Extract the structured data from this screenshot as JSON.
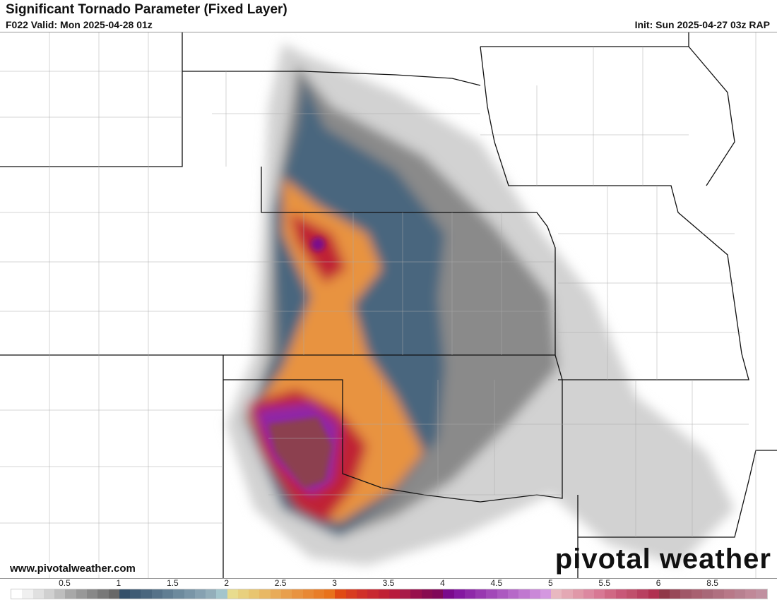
{
  "header": {
    "title": "Significant Tornado Parameter (Fixed Layer)",
    "valid": "F022 Valid: Mon 2025-04-28 01z",
    "init": "Init: Sun 2025-04-27 03z RAP"
  },
  "footer": {
    "website": "www.pivotalweather.com",
    "logo": "pivotal weather"
  },
  "colorbar": {
    "labels": [
      "0.5",
      "1",
      "1.5",
      "2",
      "2.5",
      "3",
      "3.5",
      "4",
      "4.5",
      "5",
      "5.5",
      "6",
      "8.5"
    ],
    "colors": [
      "#ffffff",
      "#f0f0f0",
      "#e0e0e0",
      "#d0d0d0",
      "#bebebe",
      "#a8a8a8",
      "#989898",
      "#888888",
      "#787878",
      "#686868",
      "#34506a",
      "#3f5b74",
      "#4a667e",
      "#567289",
      "#617e93",
      "#6d8a9d",
      "#7995a7",
      "#86a1b1",
      "#93aeba",
      "#a3c5cc",
      "#e8dc8e",
      "#e8d07e",
      "#e8c570",
      "#e8b865",
      "#e8ab58",
      "#e89f4c",
      "#e89340",
      "#e88834",
      "#e87d28",
      "#e8721c",
      "#e04a14",
      "#d83c20",
      "#d03028",
      "#c82830",
      "#c02034",
      "#b81c3c",
      "#a81c48",
      "#98104c",
      "#880c50",
      "#800858",
      "#7a0a8c",
      "#8418a0",
      "#8e28a8",
      "#9838b0",
      "#a248b8",
      "#ac58c0",
      "#b668c8",
      "#c078d0",
      "#ca88d8",
      "#d498e0",
      "#e8b8c0",
      "#e4a8b4",
      "#e098a8",
      "#dc88a0",
      "#d87894",
      "#d06884",
      "#c85878",
      "#c0506c",
      "#b84060",
      "#b03050",
      "#903848",
      "#984858",
      "#a05868",
      "#a86070",
      "#a86878",
      "#b07080",
      "#b87888",
      "#b88090",
      "#c08898",
      "#c090a0"
    ]
  }
}
